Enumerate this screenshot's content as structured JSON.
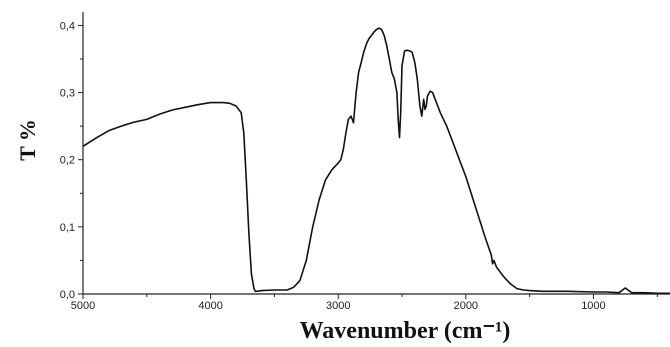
{
  "chart_data": {
    "type": "line",
    "ylabel": "T %",
    "xlabel": "Wavenumber (cm⁻¹)",
    "xlim": [
      5000,
      400
    ],
    "ylim": [
      0,
      0.42
    ],
    "x_reversed": true,
    "grid": false,
    "x_ticks": [
      5000,
      4000,
      3000,
      2000,
      1000
    ],
    "x_tick_labels": [
      "5000",
      "4000",
      "3000",
      "2000",
      "1000"
    ],
    "y_ticks": [
      0.0,
      0.1,
      0.2,
      0.3,
      0.4
    ],
    "y_tick_labels": [
      "0,0",
      "0,1",
      "0,2",
      "0,3",
      "0,4"
    ],
    "series": [
      {
        "line_color": "#111111",
        "x": [
          5000,
          4900,
          4800,
          4700,
          4600,
          4500,
          4400,
          4300,
          4200,
          4100,
          4000,
          3900,
          3850,
          3800,
          3760,
          3740,
          3720,
          3700,
          3680,
          3660,
          3650,
          3640,
          3600,
          3500,
          3400,
          3350,
          3300,
          3250,
          3200,
          3150,
          3100,
          3050,
          3000,
          2980,
          2960,
          2940,
          2920,
          2900,
          2880,
          2860,
          2840,
          2820,
          2800,
          2780,
          2760,
          2740,
          2720,
          2700,
          2680,
          2660,
          2640,
          2620,
          2600,
          2580,
          2560,
          2540,
          2530,
          2520,
          2510,
          2500,
          2480,
          2460,
          2440,
          2420,
          2400,
          2380,
          2360,
          2345,
          2330,
          2320,
          2310,
          2300,
          2280,
          2260,
          2240,
          2200,
          2150,
          2100,
          2050,
          2000,
          1950,
          1900,
          1850,
          1800,
          1790,
          1780,
          1760,
          1700,
          1650,
          1600,
          1550,
          1500,
          1400,
          1200,
          1000,
          900,
          800,
          750,
          700,
          600,
          500,
          400
        ],
        "y": [
          0.22,
          0.232,
          0.243,
          0.25,
          0.256,
          0.26,
          0.268,
          0.274,
          0.278,
          0.282,
          0.285,
          0.285,
          0.284,
          0.28,
          0.27,
          0.24,
          0.17,
          0.09,
          0.03,
          0.008,
          0.004,
          0.004,
          0.005,
          0.006,
          0.006,
          0.01,
          0.02,
          0.05,
          0.1,
          0.14,
          0.17,
          0.185,
          0.195,
          0.2,
          0.215,
          0.24,
          0.26,
          0.265,
          0.255,
          0.3,
          0.33,
          0.345,
          0.36,
          0.372,
          0.38,
          0.385,
          0.39,
          0.394,
          0.396,
          0.394,
          0.385,
          0.37,
          0.35,
          0.33,
          0.32,
          0.3,
          0.26,
          0.233,
          0.27,
          0.34,
          0.362,
          0.363,
          0.362,
          0.36,
          0.345,
          0.32,
          0.28,
          0.265,
          0.29,
          0.275,
          0.28,
          0.295,
          0.302,
          0.3,
          0.29,
          0.27,
          0.25,
          0.225,
          0.2,
          0.175,
          0.145,
          0.115,
          0.085,
          0.058,
          0.045,
          0.05,
          0.04,
          0.025,
          0.015,
          0.008,
          0.006,
          0.005,
          0.004,
          0.004,
          0.003,
          0.003,
          0.002,
          0.009,
          0.002,
          0.002,
          0.001,
          0.001
        ]
      }
    ]
  }
}
